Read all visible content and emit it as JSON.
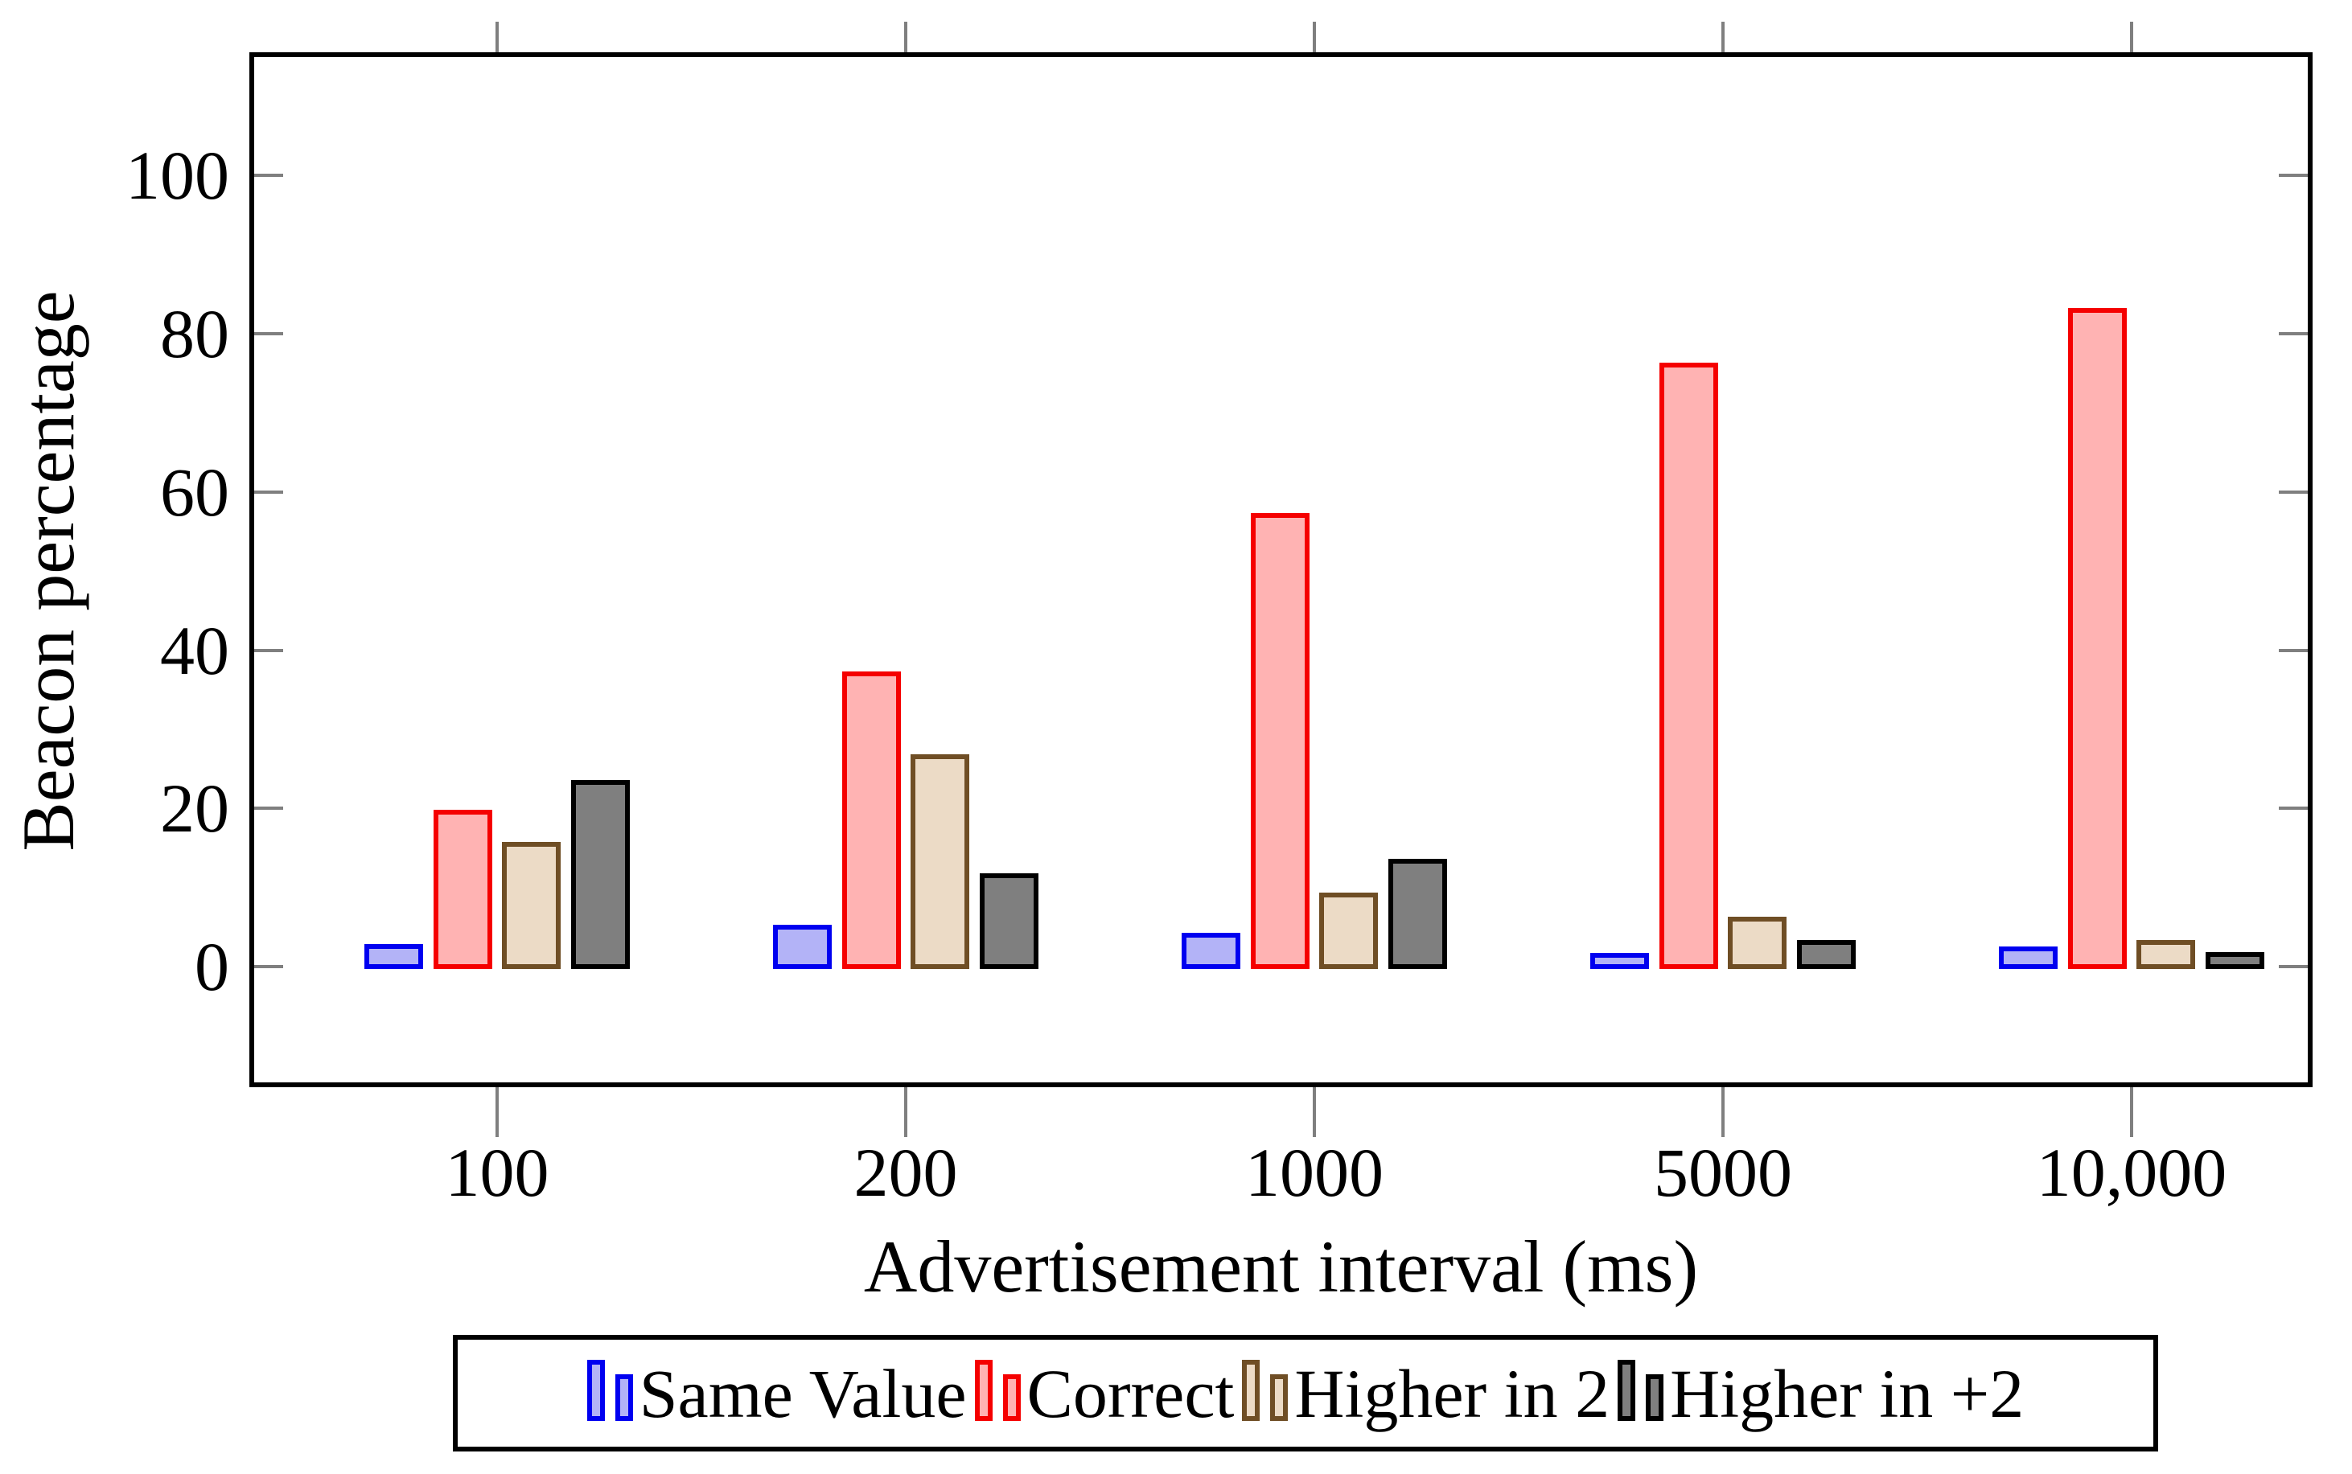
{
  "figure": {
    "ylabel": "Beacon percentage",
    "xlabel": "Advertisement interval (ms)"
  },
  "chart_data": {
    "type": "bar",
    "title": "",
    "xlabel": "Advertisement interval (ms)",
    "ylabel": "Beacon percentage",
    "categories": [
      "100",
      "200",
      "1000",
      "5000",
      "10,000"
    ],
    "series": [
      {
        "name": "Same Value",
        "fill": "#b3b3f7",
        "border": "#0000f0",
        "values": [
          2.5,
          5,
          4,
          1.4,
          2.2
        ]
      },
      {
        "name": "Correct",
        "fill": "#ffb3b3",
        "border": "#f50000",
        "values": [
          19.5,
          37,
          57,
          76,
          83
        ]
      },
      {
        "name": "Higher in 2",
        "fill": "#ecdbc6",
        "border": "#6f4e25",
        "values": [
          15.5,
          26.5,
          9,
          6,
          3
        ]
      },
      {
        "name": "Higher in +2",
        "fill": "#7f7f7f",
        "border": "#000000",
        "values": [
          23.3,
          11.5,
          13.3,
          3,
          1.5
        ]
      }
    ],
    "yticks": [
      0,
      20,
      40,
      60,
      80,
      100
    ],
    "ylim": [
      -15,
      115
    ],
    "grid": false,
    "legend_position": "below",
    "axis_color": "#000000",
    "tick_color": "#7f7f7f"
  }
}
